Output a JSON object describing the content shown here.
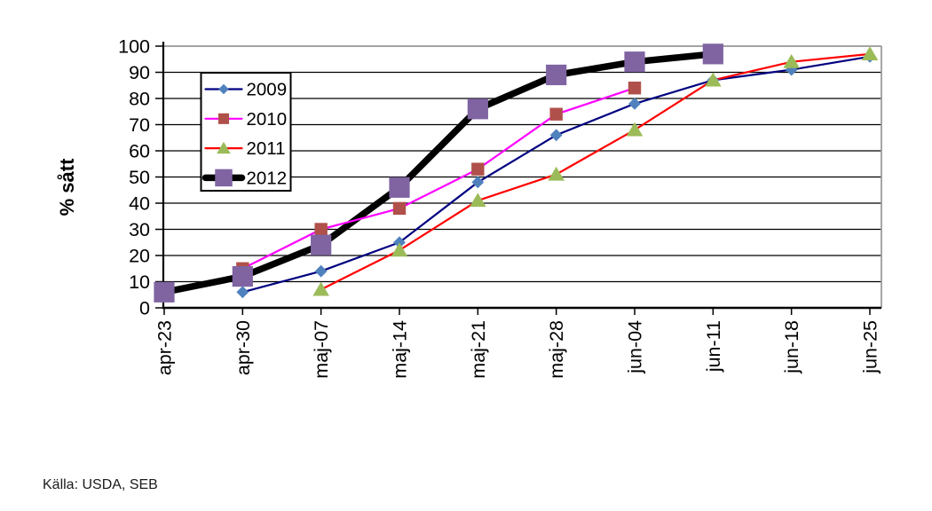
{
  "source": "Källa: USDA, SEB",
  "colors": {
    "background": "#FFFFFF",
    "grid": "#000000",
    "plot_border": "#969696",
    "axis": "#000000",
    "text": "#000000"
  },
  "chart_data": {
    "type": "line",
    "title": "",
    "xlabel": "",
    "ylabel": "% sått",
    "ylim": [
      0,
      100
    ],
    "yticks": [
      0,
      10,
      20,
      30,
      40,
      50,
      60,
      70,
      80,
      90,
      100
    ],
    "grid": "horizontal",
    "legend_position": "upper-left-inside",
    "categories": [
      "apr-23",
      "apr-30",
      "maj-07",
      "maj-14",
      "maj-21",
      "maj-28",
      "jun-04",
      "jun-11",
      "jun-18",
      "jun-25"
    ],
    "series": [
      {
        "name": "2009",
        "line_color": "#000080",
        "line_width": 2.2,
        "marker": "diamond",
        "marker_color": "#4F81BD",
        "values": [
          null,
          6,
          14,
          25,
          48,
          66,
          78,
          87,
          91,
          96
        ]
      },
      {
        "name": "2010",
        "line_color": "#FF00FF",
        "line_width": 2.2,
        "marker": "square",
        "marker_color": "#B0504A",
        "values": [
          null,
          15,
          30,
          38,
          53,
          74,
          84,
          null,
          null,
          null
        ]
      },
      {
        "name": "2011",
        "line_color": "#FF0000",
        "line_width": 2.2,
        "marker": "triangle",
        "marker_color": "#9BBB59",
        "values": [
          null,
          null,
          7,
          22,
          41,
          51,
          68,
          87,
          94,
          97
        ]
      },
      {
        "name": "2012",
        "line_color": "#000000",
        "line_width": 7.5,
        "marker": "square-large",
        "marker_color": "#8064A2",
        "values": [
          6,
          12,
          24,
          46,
          76,
          89,
          94,
          97,
          null,
          null
        ]
      }
    ]
  }
}
